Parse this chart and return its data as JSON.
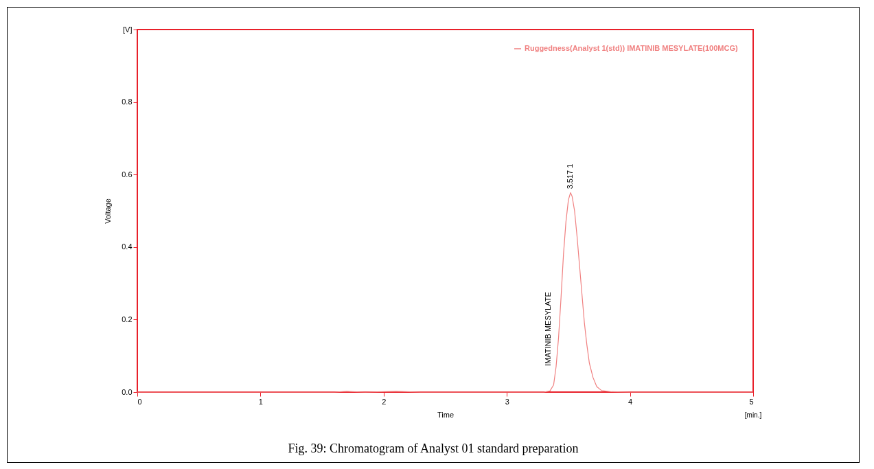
{
  "chart_data": {
    "type": "line",
    "xlabel": "Time",
    "ylabel": "Voltage",
    "xlim": [
      0,
      5
    ],
    "xticks": [
      0,
      1,
      2,
      3,
      4,
      5
    ],
    "ylim": [
      0,
      1
    ],
    "yticks": [
      {
        "value": 0,
        "label": "0.0"
      },
      {
        "value": 0.2,
        "label": "0.2"
      },
      {
        "value": 0.4,
        "label": "0.4"
      },
      {
        "value": 0.6,
        "label": "0.6"
      },
      {
        "value": 0.8,
        "label": "0.8"
      },
      {
        "value": 1,
        "label": "[V]"
      }
    ],
    "grid": false,
    "legend": "top right",
    "marker": "none",
    "line_style": "solid",
    "series": [
      {
        "name": "Ruggedness(Analyst 1(std)) IMATINIB MESYLATE(100MCG)",
        "color": "#f08080",
        "x": [
          0,
          1.6,
          1.7,
          1.85,
          2.1,
          2.3,
          3.3,
          3.35,
          3.38,
          3.4,
          3.42,
          3.44,
          3.46,
          3.48,
          3.5,
          3.517,
          3.53,
          3.55,
          3.57,
          3.59,
          3.61,
          3.63,
          3.65,
          3.67,
          3.7,
          3.73,
          3.77,
          3.85,
          4,
          5
        ],
        "values": [
          0,
          0,
          0.002,
          0,
          0.002,
          0,
          0,
          0.003,
          0.02,
          0.07,
          0.15,
          0.26,
          0.38,
          0.47,
          0.53,
          0.55,
          0.54,
          0.5,
          0.43,
          0.35,
          0.27,
          0.19,
          0.13,
          0.08,
          0.04,
          0.015,
          0.004,
          0.001,
          0,
          0
        ]
      }
    ],
    "annotations": [
      {
        "text": "3.517  1",
        "x": 3.517,
        "y": 0.56
      },
      "IMATINIB MESYLATE",
      "[min.]",
      "Fig. 39: Chromatogram of Analyst 01 standard preparation"
    ]
  }
}
